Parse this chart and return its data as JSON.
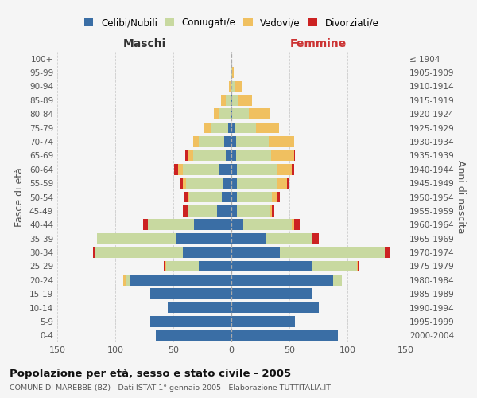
{
  "age_groups": [
    "0-4",
    "5-9",
    "10-14",
    "15-19",
    "20-24",
    "25-29",
    "30-34",
    "35-39",
    "40-44",
    "45-49",
    "50-54",
    "55-59",
    "60-64",
    "65-69",
    "70-74",
    "75-79",
    "80-84",
    "85-89",
    "90-94",
    "95-99",
    "100+"
  ],
  "birth_years": [
    "2000-2004",
    "1995-1999",
    "1990-1994",
    "1985-1989",
    "1980-1984",
    "1975-1979",
    "1970-1974",
    "1965-1969",
    "1960-1964",
    "1955-1959",
    "1950-1954",
    "1945-1949",
    "1940-1944",
    "1935-1939",
    "1930-1934",
    "1925-1929",
    "1920-1924",
    "1915-1919",
    "1910-1914",
    "1905-1909",
    "≤ 1904"
  ],
  "colors": {
    "celibe": "#3a6ea5",
    "coniugato": "#c8d9a0",
    "vedovo": "#f0c060",
    "divorziato": "#cc2222"
  },
  "maschi_celibe": [
    65,
    70,
    55,
    70,
    88,
    28,
    42,
    48,
    32,
    12,
    8,
    7,
    10,
    5,
    6,
    3,
    1,
    1,
    0,
    0,
    0
  ],
  "maschi_coniugato": [
    0,
    0,
    0,
    0,
    3,
    28,
    75,
    68,
    40,
    25,
    28,
    32,
    32,
    28,
    22,
    15,
    10,
    4,
    1,
    0,
    0
  ],
  "maschi_vedovo": [
    0,
    0,
    0,
    0,
    2,
    1,
    1,
    0,
    0,
    1,
    2,
    3,
    4,
    5,
    5,
    5,
    4,
    4,
    1,
    0,
    0
  ],
  "maschi_divorziato": [
    0,
    0,
    0,
    0,
    0,
    1,
    1,
    0,
    4,
    4,
    3,
    2,
    3,
    2,
    0,
    0,
    0,
    0,
    0,
    0,
    0
  ],
  "femmine_nubile": [
    92,
    55,
    75,
    70,
    88,
    70,
    42,
    30,
    10,
    5,
    5,
    5,
    5,
    4,
    4,
    3,
    1,
    1,
    0,
    0,
    0
  ],
  "femmine_coniugata": [
    0,
    0,
    0,
    0,
    7,
    38,
    90,
    40,
    42,
    28,
    30,
    35,
    35,
    30,
    28,
    18,
    14,
    5,
    3,
    1,
    0
  ],
  "femmine_vedova": [
    0,
    0,
    0,
    0,
    0,
    1,
    0,
    0,
    2,
    2,
    5,
    8,
    12,
    20,
    22,
    20,
    18,
    12,
    6,
    1,
    0
  ],
  "femmine_divorziata": [
    0,
    0,
    0,
    0,
    0,
    1,
    5,
    5,
    5,
    2,
    2,
    1,
    2,
    1,
    0,
    0,
    0,
    0,
    0,
    0,
    0
  ],
  "xlim": 150,
  "title": "Popolazione per età, sesso e stato civile - 2005",
  "subtitle": "COMUNE DI MAREBBE (BZ) - Dati ISTAT 1° gennaio 2005 - Elaborazione TUTTITALIA.IT",
  "ylabel_left": "Fasce di età",
  "ylabel_right": "Anni di nascita",
  "maschi_label": "Maschi",
  "femmine_label": "Femmine",
  "femmine_color": "#cc3333",
  "legend_labels": [
    "Celibi/Nubili",
    "Coniugati/e",
    "Vedovi/e",
    "Divorziati/e"
  ],
  "bg_color": "#f5f5f5",
  "grid_color": "#cccccc"
}
